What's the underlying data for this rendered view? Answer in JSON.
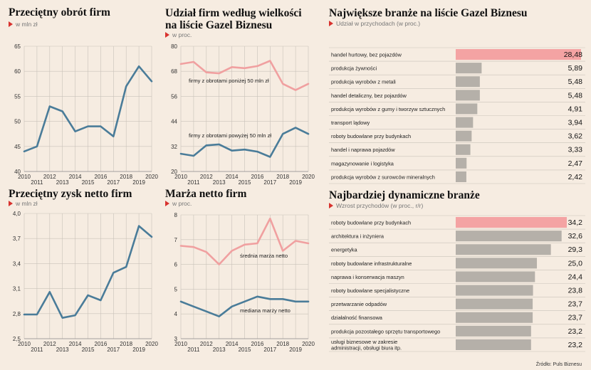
{
  "source": "Źródło: Puls Biznesu",
  "colors": {
    "background": "#f6ece1",
    "blue": "#4a7c99",
    "pink": "#f0a0a0",
    "highlight_bar": "#f4a3a3",
    "gray_bar": "#b5b0a9",
    "accent_red": "#d8322e"
  },
  "chart_data": [
    {
      "id": "obrot",
      "type": "line",
      "title": "Przeciętny obrót firm",
      "subtitle": "w mln zł",
      "x": [
        2010,
        2011,
        2012,
        2013,
        2014,
        2015,
        2016,
        2017,
        2018,
        2019,
        2020
      ],
      "x_ticks_top": [
        "2010",
        "2012",
        "2014",
        "2016",
        "2018",
        "2020"
      ],
      "x_ticks_bottom": [
        "2011",
        "2013",
        "2015",
        "2017",
        "2019"
      ],
      "ylim": [
        40,
        65
      ],
      "yticks": [
        "40",
        "45",
        "50",
        "55",
        "60",
        "65"
      ],
      "grid": true,
      "series": [
        {
          "values": [
            44,
            45,
            53,
            52,
            48,
            49,
            49,
            47,
            57,
            61,
            58
          ]
        }
      ]
    },
    {
      "id": "udzial",
      "type": "line",
      "title": "Udział firm według wielkości na liście Gazel Biznesu",
      "subtitle": "w proc.",
      "x": [
        2010,
        2011,
        2012,
        2013,
        2014,
        2015,
        2016,
        2017,
        2018,
        2019,
        2020
      ],
      "x_ticks_top": [
        "2010",
        "2012",
        "2014",
        "2016",
        "2018",
        "2020"
      ],
      "x_ticks_bottom": [
        "2011",
        "2013",
        "2015",
        "2017",
        "2019"
      ],
      "ylim": [
        20,
        80
      ],
      "yticks": [
        "20",
        "32",
        "44",
        "56",
        "68",
        "80"
      ],
      "grid": true,
      "series": [
        {
          "name": "firmy z obrotami poniżej 50 mln zł",
          "values": [
            71.5,
            72.5,
            67.5,
            67,
            70,
            69.5,
            70.5,
            73,
            62,
            59,
            62
          ]
        },
        {
          "name": "firmy z obrotami powyżej 50 mln zł",
          "values": [
            28.5,
            27.5,
            32.5,
            33,
            30,
            30.5,
            29.5,
            27,
            38,
            41,
            38
          ]
        }
      ]
    },
    {
      "id": "zysk",
      "type": "line",
      "title": "Przeciętny zysk netto firm",
      "subtitle": "w mln zł",
      "x": [
        2010,
        2011,
        2012,
        2013,
        2014,
        2015,
        2016,
        2017,
        2018,
        2019,
        2020
      ],
      "x_ticks_top": [
        "2010",
        "2012",
        "2014",
        "2016",
        "2018",
        "2020"
      ],
      "x_ticks_bottom": [
        "2011",
        "2013",
        "2015",
        "2017",
        "2019"
      ],
      "ylim": [
        2.5,
        4.0
      ],
      "yticks": [
        "2,5",
        "2,8",
        "3,1",
        "3,4",
        "3,7",
        "4,0"
      ],
      "grid": true,
      "series": [
        {
          "values": [
            2.79,
            2.79,
            3.06,
            2.75,
            2.78,
            3.02,
            2.96,
            3.29,
            3.36,
            3.85,
            3.72
          ]
        }
      ]
    },
    {
      "id": "marza",
      "type": "line",
      "title": "Marża netto firm",
      "subtitle": "w proc.",
      "x": [
        2010,
        2011,
        2012,
        2013,
        2014,
        2015,
        2016,
        2017,
        2018,
        2019,
        2020
      ],
      "x_ticks_top": [
        "2010",
        "2012",
        "2014",
        "2016",
        "2018",
        "2020"
      ],
      "x_ticks_bottom": [
        "2011",
        "2013",
        "2015",
        "2017",
        "2019"
      ],
      "ylim": [
        3,
        8
      ],
      "yticks": [
        "3",
        "4",
        "5",
        "6",
        "7",
        "8"
      ],
      "grid": true,
      "series": [
        {
          "name": "średnia marża netto",
          "values": [
            6.75,
            6.7,
            6.5,
            6.0,
            6.55,
            6.8,
            6.85,
            7.85,
            6.55,
            6.95,
            6.85
          ]
        },
        {
          "name": "mediana marży netto",
          "values": [
            4.5,
            4.3,
            4.1,
            3.9,
            4.3,
            4.5,
            4.7,
            4.6,
            4.6,
            4.5,
            4.5
          ]
        }
      ]
    },
    {
      "id": "branze",
      "type": "bar",
      "title": "Największe branże na liście Gazel Biznesu",
      "subtitle": "Udział w przychodach (w proc.)",
      "categories": [
        "handel hurtowy, bez pojazdów",
        "produkcja żywności",
        "produkcja wyrobów z metali",
        "handel detaliczny, bez pojazdów",
        "produkcja wyrobów z gumy i tworzyw sztucznych",
        "transport lądowy",
        "roboty budowlane przy budynkach",
        "handel i naprawa pojazdów",
        "magazynowanie i logistyka",
        "produkcja wyrobów z surowców mineralnych"
      ],
      "values": [
        28.48,
        5.89,
        5.48,
        5.48,
        4.91,
        3.94,
        3.62,
        3.33,
        2.47,
        2.42
      ],
      "value_labels": [
        "28,48",
        "5,89",
        "5,48",
        "5,48",
        "4,91",
        "3,94",
        "3,62",
        "3,33",
        "2,47",
        "2,42"
      ],
      "xlim": [
        0,
        28.48
      ],
      "highlight_index": 0
    },
    {
      "id": "dynamiczne",
      "type": "bar",
      "title": "Najbardziej dynamiczne branże",
      "subtitle": "Wzrost przychodów (w proc., r/r)",
      "categories": [
        "roboty budowlane przy budynkach",
        "architektura i inżyniera",
        "energetyka",
        "roboty budowlane infrastrukturalne",
        "naprawa i konserwacja maszyn",
        "roboty budowlane specjalistyczne",
        "przetwarzanie odpadów",
        "działalność finansowa",
        "produkcja pozostałego sprzętu transportowego",
        "usługi biznesowe w zakresie administracji, obsługi biura itp."
      ],
      "values": [
        34.2,
        32.6,
        29.3,
        25.0,
        24.4,
        23.8,
        23.7,
        23.7,
        23.2,
        23.2
      ],
      "value_labels": [
        "34,2",
        "32,6",
        "29,3",
        "25,0",
        "24,4",
        "23,8",
        "23,7",
        "23,7",
        "23,2",
        "23,2"
      ],
      "xlim": [
        0,
        34.2
      ],
      "highlight_index": 0
    }
  ]
}
